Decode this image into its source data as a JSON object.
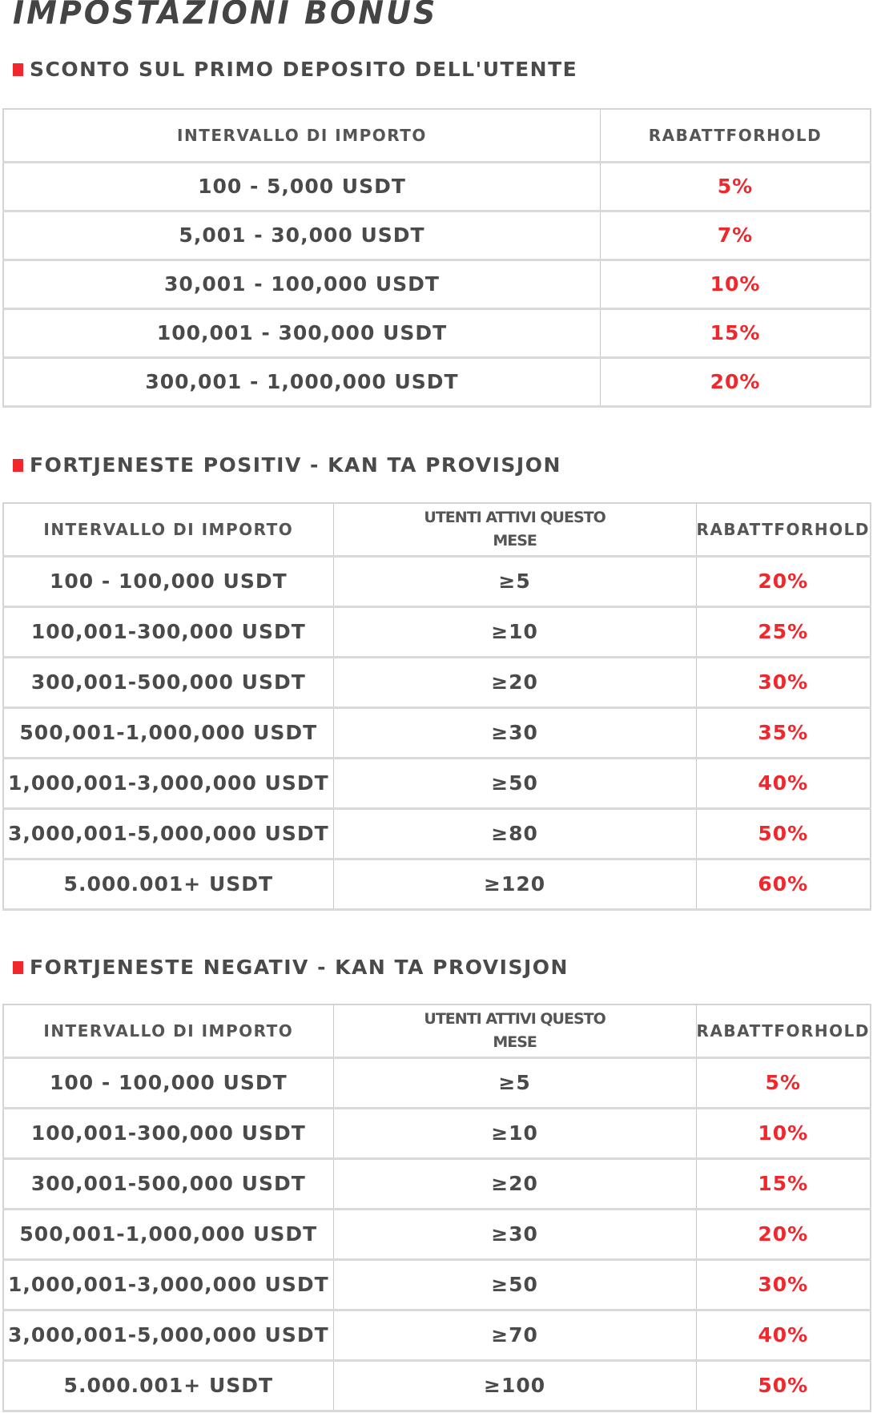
{
  "title": "IMPOSTAZIONI BONUS",
  "accent_color": "#f0272c",
  "sections": [
    {
      "heading": "SCONTO SUL PRIMO DEPOSITO DELL'UTENTE",
      "headers": [
        "INTERVALLO DI IMPORTO",
        "RABATTFORHOLD"
      ],
      "rows": [
        [
          "100 - 5,000 USDT",
          "5%"
        ],
        [
          "5,001 -  30,000 USDT",
          "7%"
        ],
        [
          "30,001 -  100,000 USDT",
          "10%"
        ],
        [
          "100,001 -  300,000 USDT",
          "15%"
        ],
        [
          "300,001 -  1,000,000 USDT",
          "20%"
        ]
      ]
    },
    {
      "heading": "FORTJENESTE POSITIV - KAN TA PROVISJON",
      "headers": [
        "INTERVALLO DI IMPORTO",
        "UTENTI ATTIVI QUESTO MESE",
        "RABATTFORHOLD"
      ],
      "rows": [
        [
          "100 - 100,000 USDT",
          "≥5",
          "20%"
        ],
        [
          "100,001-300,000 USDT",
          "≥10",
          "25%"
        ],
        [
          "300,001-500,000 USDT",
          "≥20",
          "30%"
        ],
        [
          "500,001-1,000,000 USDT",
          "≥30",
          "35%"
        ],
        [
          "1,000,001-3,000,000 USDT",
          "≥50",
          "40%"
        ],
        [
          "3,000,001-5,000,000 USDT",
          "≥80",
          "50%"
        ],
        [
          "5.000.001+ USDT",
          "≥120",
          "60%"
        ]
      ]
    },
    {
      "heading": "FORTJENESTE NEGATIV - KAN TA PROVISJON",
      "headers": [
        "INTERVALLO DI IMPORTO",
        "UTENTI ATTIVI QUESTO MESE",
        "RABATTFORHOLD"
      ],
      "rows": [
        [
          "100 - 100,000 USDT",
          "≥5",
          "5%"
        ],
        [
          "100,001-300,000 USDT",
          "≥10",
          "10%"
        ],
        [
          "300,001-500,000 USDT",
          "≥20",
          "15%"
        ],
        [
          "500,001-1,000,000 USDT",
          "≥30",
          "20%"
        ],
        [
          "1,000,001-3,000,000 USDT",
          "≥50",
          "30%"
        ],
        [
          "3,000,001-5,000,000 USDT",
          "≥70",
          "40%"
        ],
        [
          "5.000.001+ USDT",
          "≥100",
          "50%"
        ]
      ]
    }
  ]
}
